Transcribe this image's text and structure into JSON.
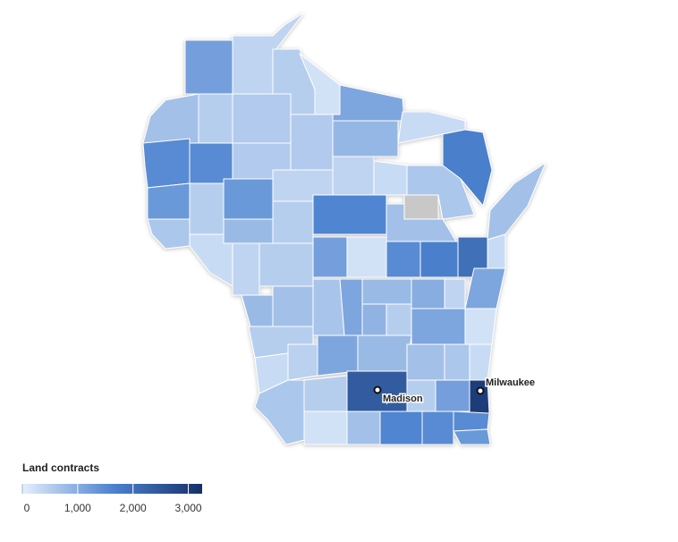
{
  "map": {
    "legend_title": "Land contracts",
    "scale": {
      "xlim": [
        0,
        3250
      ],
      "ticks": [
        0,
        {
          "value": 1000,
          "label": "1,000"
        },
        {
          "value": 2000,
          "label": "2,000"
        },
        {
          "value": 3000,
          "label": "3,000"
        }
      ],
      "colors": [
        "#e4effc",
        "#4d83d0",
        "#15306a"
      ]
    },
    "no_data_color": "#c8c8c8",
    "regions": {
      "values": [
        1200,
        400,
        500,
        200,
        1100,
        300,
        700,
        500,
        550,
        550,
        850,
        1700,
        1500,
        1500,
        550,
        400,
        300,
        600,
        null,
        1300,
        500,
        1300,
        400,
        1600,
        700,
        700,
        600,
        300,
        800,
        500,
        400,
        500,
        1200,
        200,
        1500,
        1700,
        2000,
        300,
        1100,
        800,
        700,
        650,
        1100,
        800,
        1000,
        400,
        200,
        900,
        500,
        1100,
        500,
        450,
        1100,
        800,
        700,
        600,
        300,
        300,
        600,
        500,
        2400,
        500,
        1200,
        3000,
        200,
        700,
        1600,
        1500,
        1500,
        1300
      ]
    },
    "cities": [
      {
        "name": "Madison"
      },
      {
        "name": "Milwaukee"
      }
    ]
  }
}
